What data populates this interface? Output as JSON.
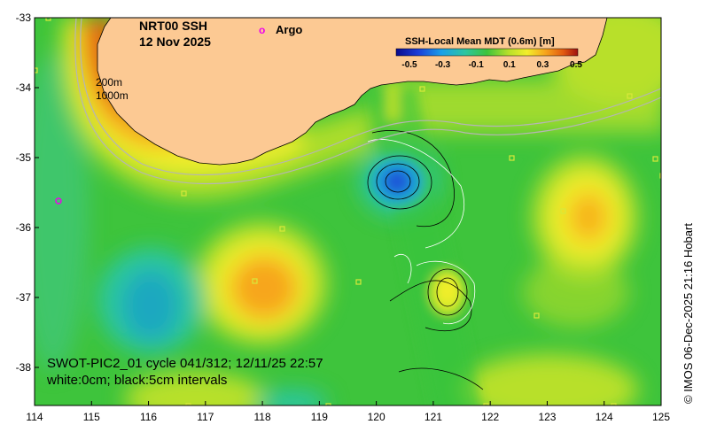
{
  "map": {
    "title_line1": "NRT00 SSH",
    "title_line2": "12 Nov 2025",
    "argo_symbol": "o",
    "argo_label": "Argo",
    "depth_label_200": "200m",
    "depth_label_1000": "1000m",
    "x_ticks": [
      "114",
      "115",
      "116",
      "117",
      "118",
      "119",
      "120",
      "121",
      "122",
      "123",
      "124",
      "125"
    ],
    "y_ticks": [
      "-33",
      "-34",
      "-35",
      "-36",
      "-37",
      "-38"
    ],
    "colorbar": {
      "title": "SSH-Local Mean MDT (0.6m) [m]",
      "ticks": [
        "-0.5",
        "-0.3",
        "-0.1",
        "0.1",
        "0.3",
        "0.5"
      ],
      "min": -0.5,
      "max": 0.5
    },
    "note_line1": "SWOT-PIC2_01 cycle 041/312; 12/11/25 22:57",
    "note_line2": "white:0cm; black:5cm intervals",
    "credit": "© IMOS 06-Dec-2025 21:16 Hobart",
    "colors": {
      "land": "#fcc993",
      "sea_background": "#3ec43c",
      "argo": "#ee00ee",
      "isobath": "#b5b5b5"
    }
  }
}
